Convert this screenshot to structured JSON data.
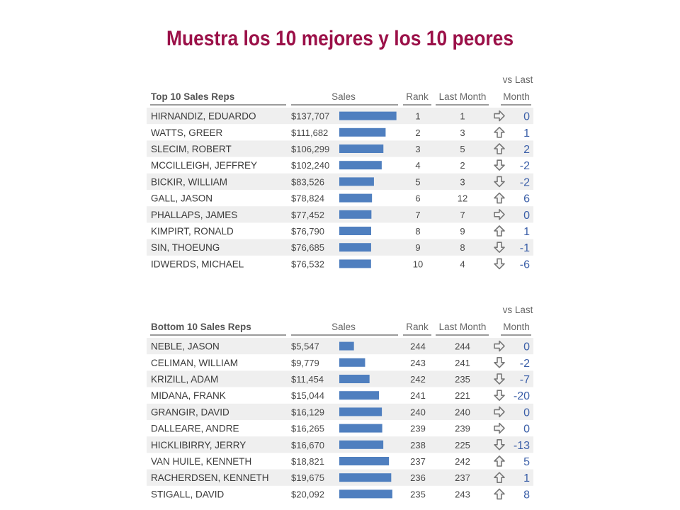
{
  "title": "Muestra los 10 mejores y los 10 peores",
  "colors": {
    "title": "#9b1048",
    "bar": "#4f7fbf",
    "diff_text": "#3b5fa8",
    "row_alt": "#efefef",
    "arrow": "#777777"
  },
  "columns": {
    "sales": "Sales",
    "rank": "Rank",
    "last_month": "Last Month",
    "vs_last_line1": "vs Last",
    "vs_last_line2": "Month"
  },
  "chart_data": [
    {
      "type": "bar",
      "title": "Top 10 Sales Reps",
      "value_column": "Sales",
      "xlim": [
        0,
        140000
      ],
      "categories": [
        "HIRNANDIZ, EDUARDO",
        "WATTS, GREER",
        "SLECIM, ROBERT",
        "MCCILLEIGH, JEFFREY",
        "BICKIR, WILLIAM",
        "GALL, JASON",
        "PHALLAPS, JAMES",
        "KIMPIRT, RONALD",
        "SIN, THOEUNG",
        "IDWERDS, MICHAEL"
      ],
      "values": [
        137707,
        111682,
        106299,
        102240,
        83526,
        78824,
        77452,
        76790,
        76685,
        76532
      ],
      "sales_labels": [
        "$137,707",
        "$111,682",
        "$106,299",
        "$102,240",
        "$83,526",
        "$78,824",
        "$77,452",
        "$76,790",
        "$76,685",
        "$76,532"
      ],
      "rank": [
        1,
        2,
        3,
        4,
        5,
        6,
        7,
        8,
        9,
        10
      ],
      "last_month": [
        1,
        3,
        5,
        2,
        3,
        12,
        7,
        9,
        8,
        4
      ],
      "vs_last_month": [
        0,
        1,
        2,
        -2,
        -2,
        6,
        0,
        1,
        -1,
        -6
      ],
      "trend_icons": [
        "right-arrow-icon",
        "up-arrow-icon",
        "up-arrow-icon",
        "down-arrow-icon",
        "down-arrow-icon",
        "up-arrow-icon",
        "right-arrow-icon",
        "up-arrow-icon",
        "down-arrow-icon",
        "down-arrow-icon"
      ]
    },
    {
      "type": "bar",
      "title": "Bottom 10 Sales Reps",
      "value_column": "Sales",
      "xlim": [
        0,
        22000
      ],
      "categories": [
        "NEBLE, JASON",
        "CELIMAN, WILLIAM",
        "KRIZILL, ADAM",
        "MIDANA, FRANK",
        "GRANGIR, DAVID",
        "DALLEARE, ANDRE",
        "HICKLIBIRRY, JERRY",
        "VAN HUILE, KENNETH",
        "RACHERDSEN, KENNETH",
        "STIGALL, DAVID"
      ],
      "values": [
        5547,
        9779,
        11454,
        15044,
        16129,
        16265,
        16670,
        18821,
        19675,
        20092
      ],
      "sales_labels": [
        "$5,547",
        "$9,779",
        "$11,454",
        "$15,044",
        "$16,129",
        "$16,265",
        "$16,670",
        "$18,821",
        "$19,675",
        "$20,092"
      ],
      "rank": [
        244,
        243,
        242,
        241,
        240,
        239,
        238,
        237,
        236,
        235
      ],
      "last_month": [
        244,
        241,
        235,
        221,
        240,
        239,
        225,
        242,
        237,
        243
      ],
      "vs_last_month": [
        0,
        -2,
        -7,
        -20,
        0,
        0,
        -13,
        5,
        1,
        8
      ],
      "trend_icons": [
        "right-arrow-icon",
        "down-arrow-icon",
        "down-arrow-icon",
        "down-arrow-icon",
        "right-arrow-icon",
        "right-arrow-icon",
        "down-arrow-icon",
        "up-arrow-icon",
        "up-arrow-icon",
        "up-arrow-icon"
      ]
    }
  ]
}
